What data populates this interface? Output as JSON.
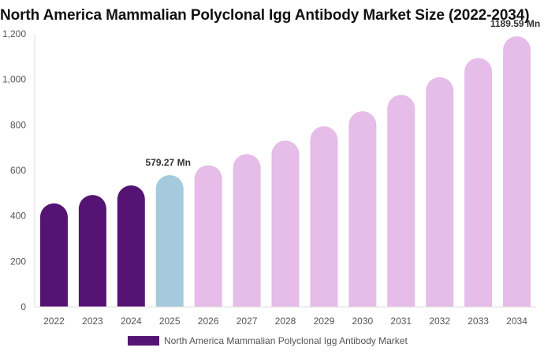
{
  "chart_data": {
    "type": "bar",
    "title": "North America Mammalian Polyclonal Igg Antibody Market Size (2022-2034)",
    "xlabel": "",
    "ylabel": "",
    "categories": [
      "2022",
      "2023",
      "2024",
      "2025",
      "2026",
      "2027",
      "2028",
      "2029",
      "2030",
      "2031",
      "2032",
      "2033",
      "2034"
    ],
    "series": [
      {
        "name": "North America Mammalian Polyclonal Igg Antibody Market",
        "values": [
          455,
          492,
          534,
          579.27,
          623,
          672,
          731,
          794,
          860,
          932,
          1010,
          1094,
          1189.59
        ]
      }
    ],
    "ylim": [
      0,
      1200
    ],
    "yticks": [
      0,
      200,
      400,
      600,
      800,
      1000,
      1200
    ],
    "ytick_labels": [
      "0",
      "200",
      "400",
      "600",
      "800",
      "1,000",
      "1,200"
    ],
    "data_labels": [
      {
        "index": 3,
        "text": "579.27 Mn"
      },
      {
        "index": 12,
        "text": "1189.59 Mn"
      }
    ],
    "colors": {
      "historical": "#551473",
      "current": "#a5cadd",
      "forecast": "#e6bce8",
      "legend": "#551473"
    },
    "bar_color_keys": [
      "historical",
      "historical",
      "historical",
      "current",
      "forecast",
      "forecast",
      "forecast",
      "forecast",
      "forecast",
      "forecast",
      "forecast",
      "forecast",
      "forecast"
    ],
    "grid": false,
    "legend_position": "bottom-center"
  }
}
